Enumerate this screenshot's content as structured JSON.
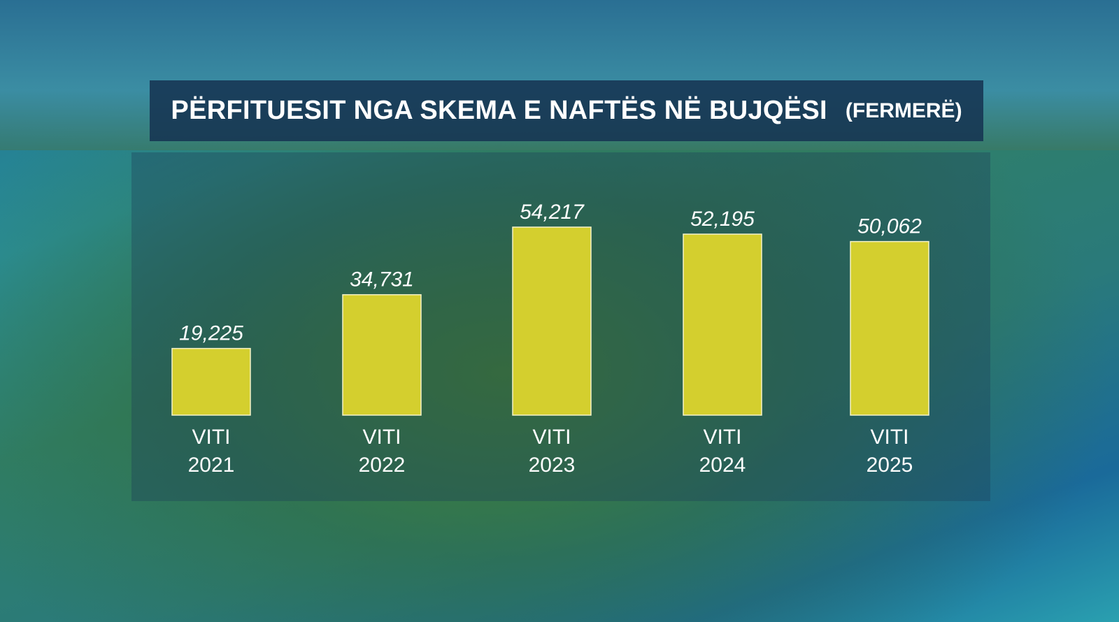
{
  "chart_data": {
    "type": "bar",
    "title": "PËRFITUESIT NGA SKEMA E NAFTËS NË BUJQËSI",
    "subtitle": "(FERMERË)",
    "categories": [
      "VITI 2021",
      "VITI 2022",
      "VITI 2023",
      "VITI 2024",
      "VITI 2025"
    ],
    "values": [
      19225,
      34731,
      54217,
      52195,
      50062
    ],
    "value_labels": [
      "19,225",
      "34,731",
      "54,217",
      "52,195",
      "50,062"
    ],
    "color": "#d4cf2e"
  }
}
